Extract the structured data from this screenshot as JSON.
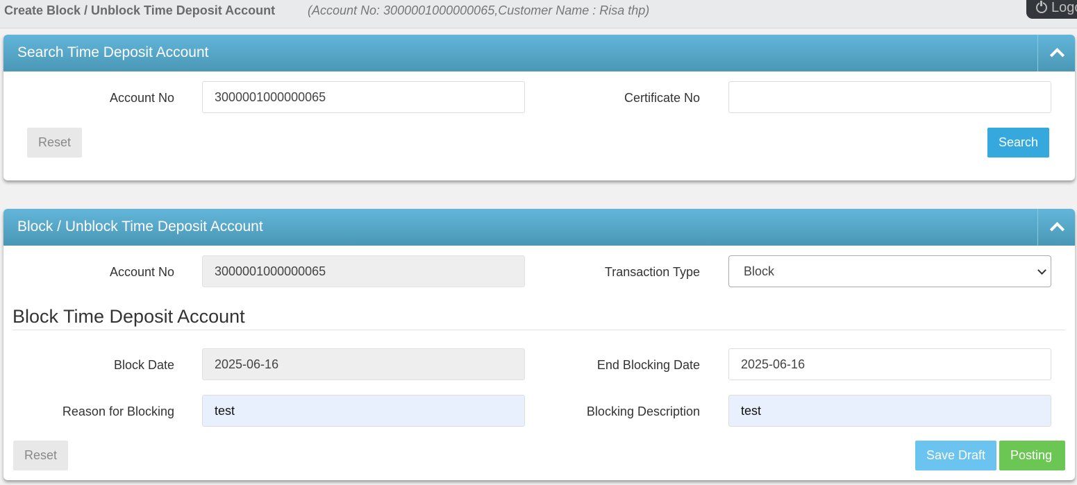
{
  "header": {
    "title": "Create Block / Unblock Time Deposit Account",
    "subtitle": "(Account No: 3000001000000065,Customer Name : Risa thp)",
    "logout_label": "Logout"
  },
  "search_panel": {
    "title": "Search Time Deposit Account",
    "account_no_label": "Account No",
    "account_no_value": "3000001000000065",
    "certificate_no_label": "Certificate No",
    "certificate_no_value": "",
    "reset_label": "Reset",
    "search_label": "Search"
  },
  "block_panel": {
    "title": "Block / Unblock Time Deposit Account",
    "account_no_label": "Account No",
    "account_no_value": "3000001000000065",
    "transaction_type_label": "Transaction Type",
    "transaction_type_value": "Block",
    "section_title": "Block Time Deposit Account",
    "block_date_label": "Block Date",
    "block_date_value": "2025-06-16",
    "end_blocking_date_label": "End Blocking Date",
    "end_blocking_date_value": "2025-06-16",
    "reason_label": "Reason for Blocking",
    "reason_value": "test",
    "description_label": "Blocking Description",
    "description_value": "test",
    "reset_label": "Reset",
    "save_draft_label": "Save Draft",
    "posting_label": "Posting"
  }
}
